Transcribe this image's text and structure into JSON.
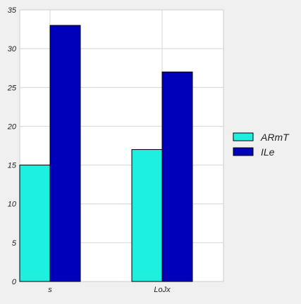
{
  "chart_data": {
    "type": "bar",
    "categories": [
      "s",
      "LoJx"
    ],
    "series": [
      {
        "name": "ARmT",
        "values": [
          15,
          17
        ],
        "color": "#1ef0e0"
      },
      {
        "name": "ILe",
        "values": [
          33,
          27
        ],
        "color": "#0000bb"
      }
    ],
    "ylim": [
      0,
      35
    ],
    "yticks": [
      0,
      5,
      10,
      15,
      20,
      25,
      30,
      35
    ],
    "grid": true,
    "legend_position": "right",
    "colors": {
      "background": "#f0f0f0",
      "plot_area": "#ffffff",
      "grid": "#d4d4d4",
      "bar_edge": "#000000"
    }
  }
}
